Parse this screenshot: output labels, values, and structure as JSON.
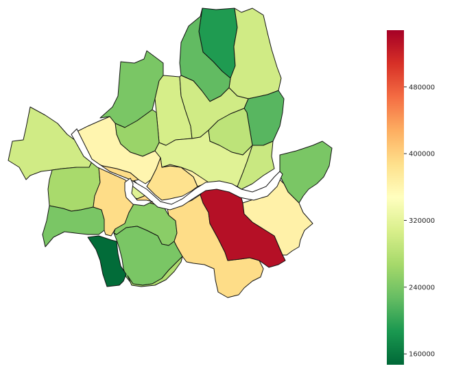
{
  "map": {
    "districts": [
      {
        "id": "d1",
        "value": 190000
      },
      {
        "id": "d2",
        "value": 300000
      },
      {
        "id": "d3",
        "value": 225000
      },
      {
        "id": "d4",
        "value": 295000
      },
      {
        "id": "d5",
        "value": 220000
      },
      {
        "id": "d6",
        "value": 240000
      },
      {
        "id": "d7",
        "value": 305000
      },
      {
        "id": "d8",
        "value": 300000
      },
      {
        "id": "d9",
        "value": 260000
      },
      {
        "id": "d10",
        "value": 300000
      },
      {
        "id": "d11",
        "value": 285000
      },
      {
        "id": "d12",
        "value": 295000
      },
      {
        "id": "d13",
        "value": 360000
      },
      {
        "id": "d14",
        "value": 315000
      },
      {
        "id": "d15",
        "value": 240000
      },
      {
        "id": "d16",
        "value": 385000
      },
      {
        "id": "d17",
        "value": 365000
      },
      {
        "id": "d18",
        "value": 270000
      },
      {
        "id": "d19",
        "value": 315000
      },
      {
        "id": "d20",
        "value": 240000
      },
      {
        "id": "d21",
        "value": 390000
      },
      {
        "id": "d22",
        "value": 250000
      },
      {
        "id": "d23",
        "value": 240000
      },
      {
        "id": "d24",
        "value": 150000
      },
      {
        "id": "d25",
        "value": 275000
      },
      {
        "id": "d26",
        "value": 390000
      },
      {
        "id": "d27",
        "value": 535000
      },
      {
        "id": "d28",
        "value": 365000
      },
      {
        "id": "d29",
        "value": 395000
      }
    ]
  },
  "colorbar": {
    "cmap": "RdYlGn_r",
    "min": 147000,
    "max": 548000,
    "ticks": [
      {
        "value": 160000,
        "label": "160000"
      },
      {
        "value": 240000,
        "label": "240000"
      },
      {
        "value": 320000,
        "label": "320000"
      },
      {
        "value": 400000,
        "label": "400000"
      },
      {
        "value": 480000,
        "label": "480000"
      }
    ]
  }
}
